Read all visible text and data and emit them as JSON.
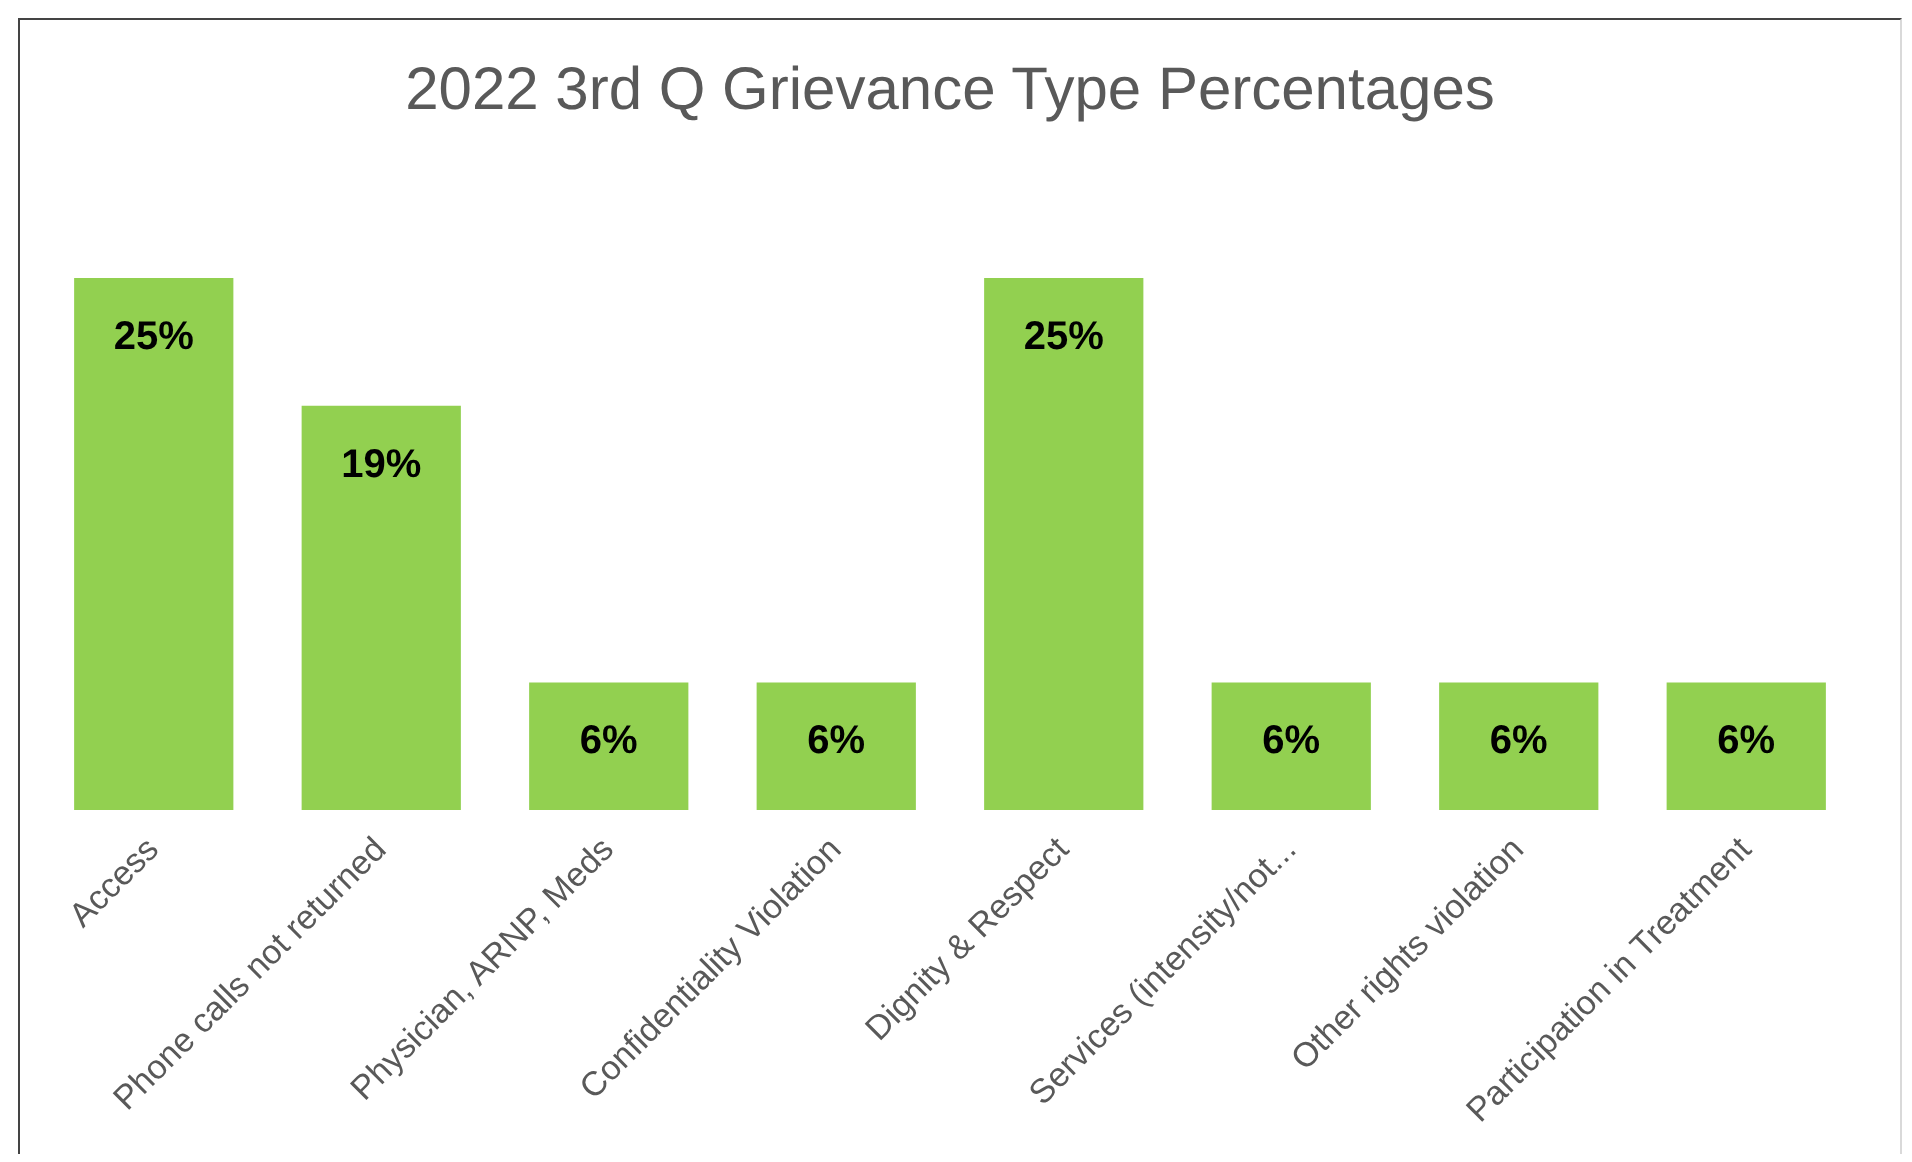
{
  "chart_data": {
    "type": "bar",
    "title": "2022 3rd Q Grievance Type Percentages",
    "categories": [
      "Access",
      "Phone calls not returned",
      "Physician, ARNP, Meds",
      "Confidentiality Violation",
      "Dignity & Respect",
      "Services (intensity/not...",
      "Other rights violation",
      "Participation in Treatment"
    ],
    "values": [
      25,
      19,
      6,
      6,
      25,
      6,
      6,
      6
    ],
    "value_labels": [
      "25%",
      "19%",
      "6%",
      "6%",
      "25%",
      "6%",
      "6%",
      "6%"
    ],
    "color": "#92d050",
    "legend": false,
    "grid": false
  }
}
